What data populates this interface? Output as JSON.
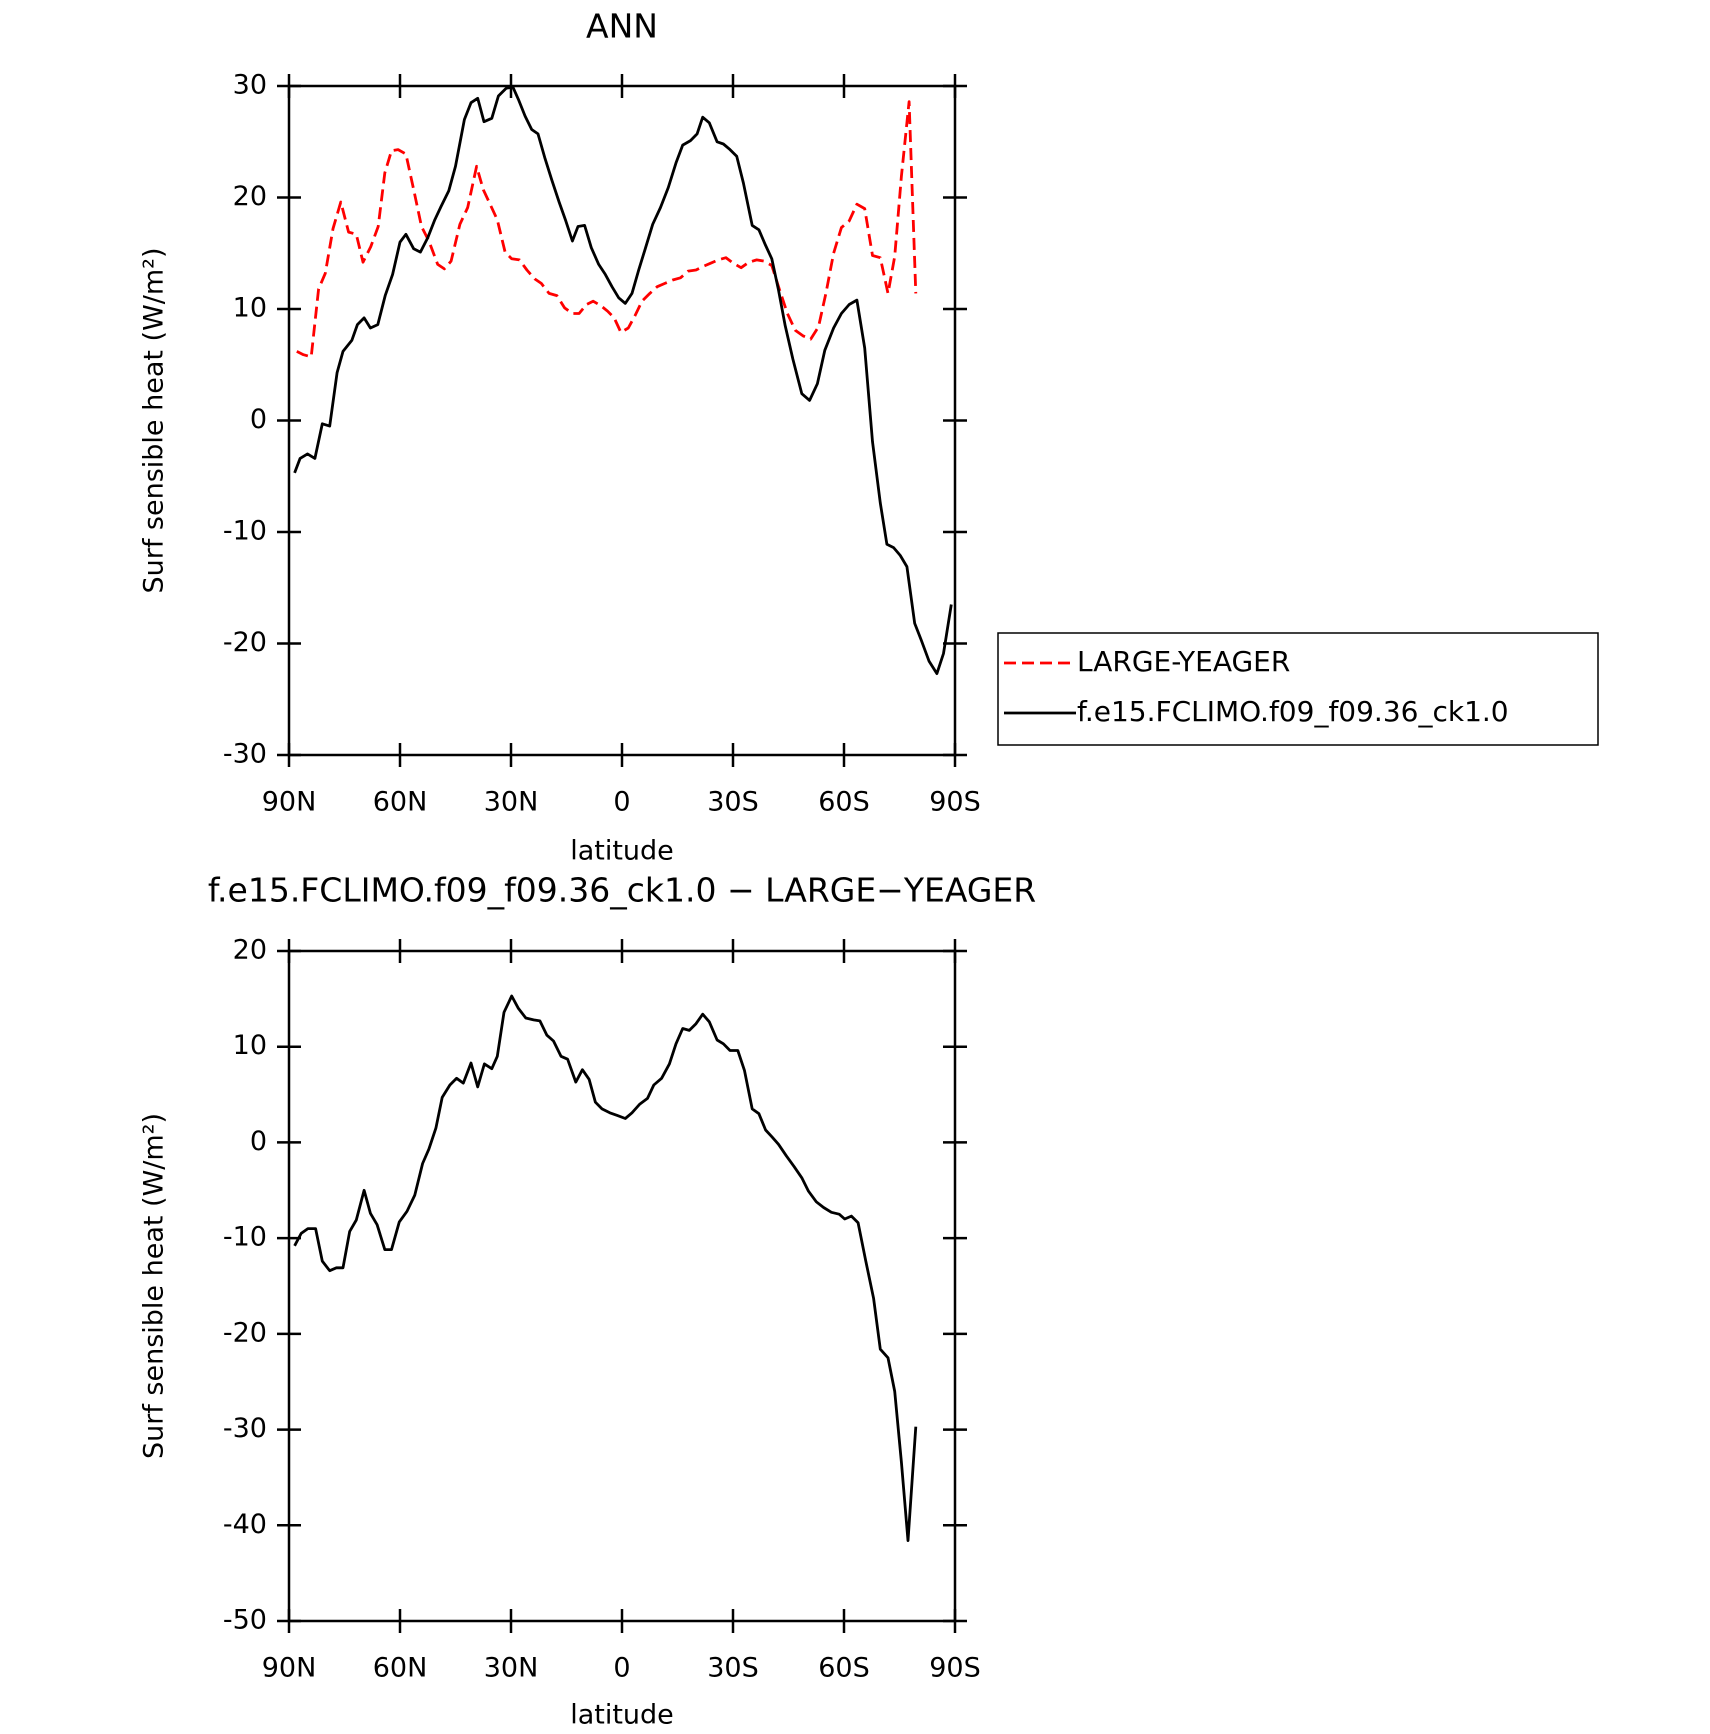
{
  "chart_data": [
    {
      "type": "line",
      "title": "ANN",
      "xlabel": "latitude",
      "ylabel": "Surf sensible heat (W/m²)",
      "xlim": [
        90,
        -90
      ],
      "xticks": [
        {
          "value": 90,
          "label": "90N"
        },
        {
          "value": 60,
          "label": "60N"
        },
        {
          "value": 30,
          "label": "30N"
        },
        0,
        {
          "value": -30,
          "label": "30S"
        },
        {
          "value": -60,
          "label": "60S"
        },
        {
          "value": -90,
          "label": "90S"
        }
      ],
      "ylim": [
        -30,
        30
      ],
      "yticks": [
        -30,
        -20,
        -10,
        0,
        10,
        20,
        30
      ],
      "legend": "outside right",
      "series": [
        {
          "name": "LARGE-YEAGER",
          "color": "#ff0000",
          "style": "dashed",
          "x": [
            87.9,
            86.1,
            84,
            82,
            80.2,
            78.1,
            76,
            73.9,
            71.8,
            70,
            67.9,
            65.9,
            64.1,
            62.3,
            60.5,
            58.4,
            56.3,
            54.2,
            52.2,
            49.8,
            48,
            46.2,
            43.8,
            41.7,
            39.3,
            37.5,
            35.5,
            33.7,
            31.6,
            29.8,
            27.7,
            25.7,
            23.6,
            21.8,
            19.7,
            17.6,
            15.5,
            13.4,
            11.6,
            9.6,
            7.8,
            5.7,
            3.9,
            2.1,
            0.3,
            -1.7,
            -3.5,
            -5.4,
            -7.5,
            -9.5,
            -11.6,
            -13.7,
            -15.8,
            -17.9,
            -20,
            -21.8,
            -23.9,
            -26,
            -28.1,
            -30.1,
            -32.2,
            -34.3,
            -36.4,
            -38.4,
            -40.5,
            -42.6,
            -44.7,
            -46.8,
            -48.9,
            -51,
            -53.1,
            -55.1,
            -57.2,
            -59.3,
            -61.4,
            -63.5,
            -65.6,
            -67.7,
            -69.8,
            -71.9,
            -73.7,
            -75.5,
            -77.6,
            -79.4
          ],
          "values": [
            6.2,
            5.9,
            5.7,
            11.8,
            13.2,
            17.2,
            19.6,
            16.9,
            16.7,
            14.2,
            15.6,
            17.4,
            22.2,
            24.2,
            24.3,
            23.9,
            20.7,
            17.4,
            16.1,
            14.0,
            13.6,
            14.3,
            17.6,
            19.1,
            22.8,
            20.7,
            19.3,
            18.0,
            15.1,
            14.5,
            14.4,
            13.5,
            12.7,
            12.3,
            11.4,
            11.2,
            10.1,
            9.6,
            9.6,
            10.4,
            10.7,
            10.3,
            9.8,
            9.2,
            7.9,
            8.3,
            9.4,
            10.7,
            11.4,
            12.0,
            12.3,
            12.6,
            12.8,
            13.4,
            13.5,
            13.8,
            14.1,
            14.4,
            14.6,
            14.1,
            13.7,
            14.2,
            14.4,
            14.3,
            13.9,
            11.7,
            9.6,
            8.1,
            7.6,
            7.3,
            8.4,
            11.4,
            15.0,
            17.3,
            17.9,
            19.4,
            19.0,
            14.8,
            14.6,
            11.4,
            14.7,
            21.9,
            28.6,
            11.4
          ]
        },
        {
          "name": "f.e15.FCLIMO.f09_f09.36_ck1.0",
          "color": "#000000",
          "style": "solid",
          "x": [
            88.5,
            87,
            85,
            83,
            81,
            79,
            77,
            75.4,
            73,
            71.5,
            69.7,
            68,
            66,
            64,
            62,
            60,
            58.4,
            56.3,
            54.5,
            52.5,
            50.6,
            48.9,
            46.8,
            45,
            42.6,
            40.8,
            39,
            37.3,
            35.2,
            33.4,
            31.3,
            29.5,
            28,
            26.2,
            24.4,
            22.7,
            20.9,
            19,
            17,
            15.2,
            13.4,
            11.9,
            10.1,
            8.3,
            6.3,
            4.5,
            2.7,
            0.9,
            -0.9,
            -2.7,
            -4.5,
            -6.2,
            -8.3,
            -10.4,
            -12.5,
            -14.6,
            -16.4,
            -18.5,
            -20.3,
            -21.8,
            -23.6,
            -25.7,
            -27.4,
            -29.2,
            -31,
            -32.8,
            -35.2,
            -37,
            -38.8,
            -40.5,
            -42.3,
            -44.1,
            -46.2,
            -48.6,
            -50.7,
            -52.8,
            -54.8,
            -57.2,
            -59.3,
            -61.4,
            -63.5,
            -65.6,
            -67.7,
            -69.8,
            -71.6,
            -73.4,
            -75.2,
            -77,
            -79.1,
            -80.9,
            -83,
            -85.1,
            -86.9,
            -89
          ],
          "values": [
            -4.7,
            -3.4,
            -3.0,
            -3.4,
            -0.3,
            -0.5,
            4.3,
            6.2,
            7.2,
            8.6,
            9.2,
            8.3,
            8.6,
            11.2,
            13.1,
            16.0,
            16.7,
            15.4,
            15.1,
            16.4,
            18.0,
            19.2,
            20.6,
            22.8,
            27.0,
            28.5,
            28.9,
            26.8,
            27.1,
            29.1,
            29.8,
            29.9,
            28.8,
            27.3,
            26.1,
            25.7,
            23.6,
            21.6,
            19.6,
            17.9,
            16.1,
            17.4,
            17.5,
            15.5,
            14.0,
            13.1,
            12.0,
            11.0,
            10.5,
            11.4,
            13.5,
            15.3,
            17.6,
            19.1,
            20.9,
            23.1,
            24.7,
            25.1,
            25.7,
            27.2,
            26.7,
            25.0,
            24.8,
            24.3,
            23.7,
            21.3,
            17.5,
            17.1,
            15.7,
            14.5,
            11.7,
            8.5,
            5.5,
            2.4,
            1.8,
            3.3,
            6.3,
            8.3,
            9.6,
            10.4,
            10.8,
            6.5,
            -1.9,
            -7.4,
            -11.1,
            -11.4,
            -12.1,
            -13.1,
            -18.2,
            -19.7,
            -21.6,
            -22.7,
            -20.9,
            -16.5
          ]
        }
      ]
    },
    {
      "type": "line",
      "title": "f.e15.FCLIMO.f09_f09.36_ck1.0 − LARGE−YEAGER",
      "xlabel": "latitude",
      "ylabel": "Surf sensible heat (W/m²)",
      "xlim": [
        90,
        -90
      ],
      "xticks": [
        {
          "value": 90,
          "label": "90N"
        },
        {
          "value": 60,
          "label": "60N"
        },
        {
          "value": 30,
          "label": "30N"
        },
        0,
        {
          "value": -30,
          "label": "30S"
        },
        {
          "value": -60,
          "label": "60S"
        },
        {
          "value": -90,
          "label": "90S"
        }
      ],
      "ylim": [
        -50,
        20
      ],
      "yticks": [
        -50,
        -40,
        -30,
        -20,
        -10,
        0,
        10,
        20
      ],
      "series": [
        {
          "color": "#000000",
          "style": "solid",
          "x": [
            88.5,
            86.7,
            84.9,
            82.8,
            81,
            79,
            77.2,
            75.4,
            73.6,
            71.8,
            69.7,
            68,
            66.2,
            64.1,
            62.3,
            60.2,
            58.1,
            56,
            53.9,
            52.2,
            50.3,
            48.6,
            46.5,
            44.7,
            42.9,
            40.8,
            39,
            37.2,
            35.2,
            33.7,
            31.9,
            29.8,
            28,
            26,
            23.9,
            22.2,
            20.3,
            18.5,
            16.5,
            14.7,
            12.5,
            10.7,
            8.9,
            7.2,
            5.4,
            3.3,
            1.2,
            -0.9,
            -2.7,
            -4.8,
            -6.9,
            -8.6,
            -10.7,
            -12.8,
            -14.6,
            -16.4,
            -18.2,
            -20,
            -21.8,
            -23.6,
            -25.7,
            -27.4,
            -29.2,
            -31.3,
            -33.1,
            -35.2,
            -37,
            -38.8,
            -40.5,
            -42.3,
            -44.4,
            -46.5,
            -48.6,
            -50.4,
            -52.5,
            -54.5,
            -56.6,
            -58.7,
            -60.2,
            -62,
            -63.8,
            -65.9,
            -68,
            -69.8,
            -71.9,
            -73.7,
            -75.5,
            -77.3,
            -79.4
          ],
          "values": [
            -10.8,
            -9.5,
            -9.0,
            -9.0,
            -12.4,
            -13.4,
            -13.1,
            -13.1,
            -9.3,
            -8.1,
            -5.0,
            -7.4,
            -8.6,
            -11.2,
            -11.2,
            -8.3,
            -7.2,
            -5.5,
            -2.2,
            -0.7,
            1.5,
            4.7,
            6.0,
            6.7,
            6.2,
            8.3,
            5.8,
            8.2,
            7.7,
            9.0,
            13.6,
            15.3,
            14.0,
            13.0,
            12.8,
            12.7,
            11.2,
            10.6,
            9.0,
            8.7,
            6.3,
            7.6,
            6.6,
            4.2,
            3.5,
            3.1,
            2.8,
            2.5,
            3.1,
            4.0,
            4.6,
            6.0,
            6.7,
            8.2,
            10.3,
            11.9,
            11.7,
            12.4,
            13.4,
            12.6,
            10.7,
            10.3,
            9.6,
            9.6,
            7.5,
            3.5,
            3.0,
            1.3,
            0.6,
            -0.2,
            -1.4,
            -2.5,
            -3.7,
            -5.1,
            -6.2,
            -6.8,
            -7.3,
            -7.5,
            -8.0,
            -7.7,
            -8.4,
            -12.4,
            -16.3,
            -21.6,
            -22.5,
            -26.0,
            -33.4,
            -41.6,
            -29.7
          ]
        }
      ]
    }
  ]
}
